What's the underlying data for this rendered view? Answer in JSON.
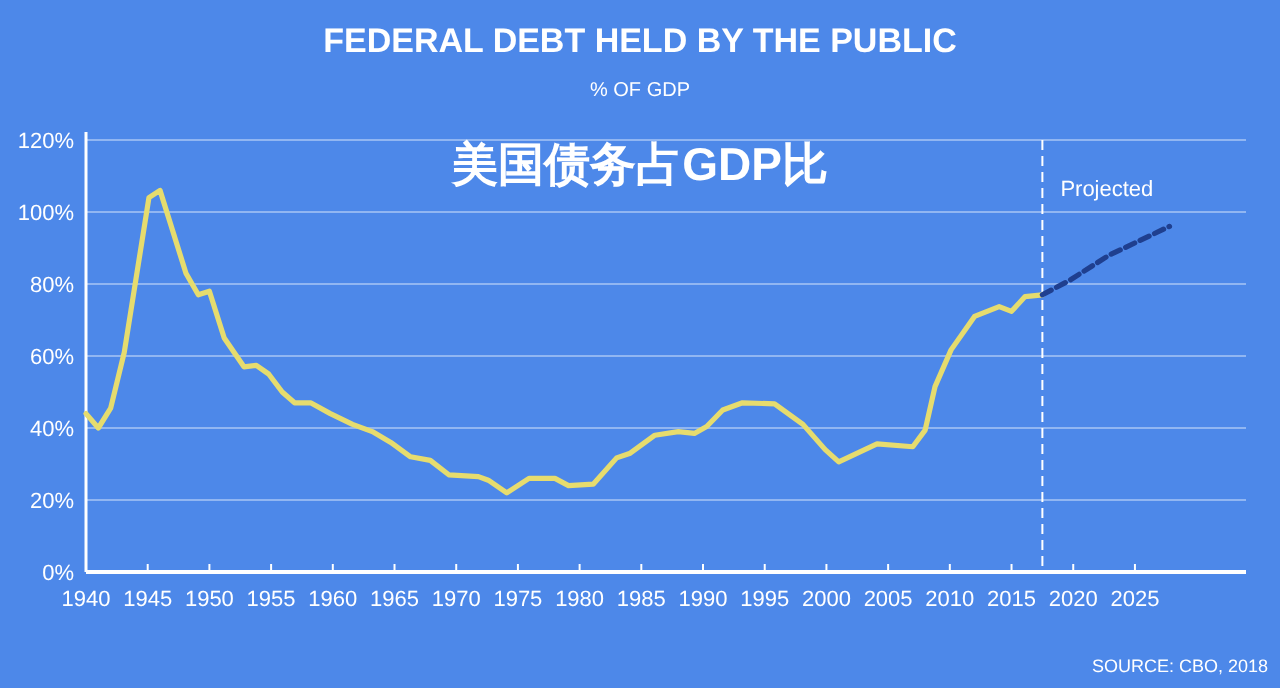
{
  "chart_data": {
    "type": "line",
    "title": "FEDERAL DEBT HELD BY THE PUBLIC",
    "subtitle": "% OF GDP",
    "annotations": [
      "美国债务占GDP比",
      "SOURCE: CBO, 2018"
    ],
    "xlim": [
      1940,
      2034
    ],
    "xticks": [
      1940,
      1945,
      1950,
      1955,
      1960,
      1965,
      1970,
      1975,
      1980,
      1985,
      1990,
      1995,
      2000,
      2005,
      2010,
      2015,
      2020,
      2025
    ],
    "ylim": [
      0,
      120
    ],
    "yticks": [
      {
        "value": 0,
        "label": "0%"
      },
      {
        "value": 20,
        "label": "20%"
      },
      {
        "value": 40,
        "label": "40%"
      },
      {
        "value": 60,
        "label": "60%"
      },
      {
        "value": 80,
        "label": "80%"
      },
      {
        "value": 100,
        "label": "100%"
      },
      {
        "value": 120,
        "label": "120%"
      }
    ],
    "grid": "y",
    "series": [
      {
        "color": "#e6dc6e",
        "line_style": "solid",
        "x": [
          1940,
          1941,
          1942,
          1943.1,
          1945.1,
          1946,
          1948.1,
          1949.1,
          1950,
          1951.2,
          1952.8,
          1953.8,
          1954.8,
          1955.9,
          1956.9,
          1958.2,
          1959.8,
          1961.6,
          1963.2,
          1964.7,
          1966.3,
          1967.9,
          1969.4,
          1971.8,
          1972.6,
          1974.1,
          1975.9,
          1978,
          1979.1,
          1981.1,
          1983,
          1984.1,
          1986.1,
          1988,
          1989.3,
          1990.3,
          1991.6,
          1993.2,
          1995.8,
          1998.1,
          1999.9,
          2001,
          2004.1,
          2007,
          2008,
          2008.8,
          2010.1,
          2012,
          2014,
          2015,
          2016.1,
          2017.5
        ],
        "values": [
          44,
          40,
          45.5,
          61,
          104,
          106,
          83,
          77,
          78,
          65,
          57,
          57.4,
          55,
          50,
          47,
          47,
          44,
          41,
          39,
          36,
          32,
          31,
          27,
          26.5,
          25.5,
          22,
          26,
          26,
          24,
          24.4,
          31.7,
          33,
          38,
          39,
          38.5,
          40.4,
          45,
          47,
          46.7,
          41,
          34,
          30.6,
          35.6,
          34.8,
          39.4,
          51.5,
          61.7,
          71,
          73.7,
          72.4,
          76.5,
          77
        ]
      },
      {
        "color": "#1f3f8f",
        "line_style": "dashed",
        "x": [
          2017.5,
          2019.7,
          2022.9,
          2027.8
        ],
        "values": [
          77,
          81,
          88,
          96
        ]
      }
    ],
    "ref_lines": [
      {
        "axis": "x",
        "value": 2017.5,
        "label": "Projected",
        "color": "#ffffff",
        "line_style": "dashed"
      }
    ]
  }
}
